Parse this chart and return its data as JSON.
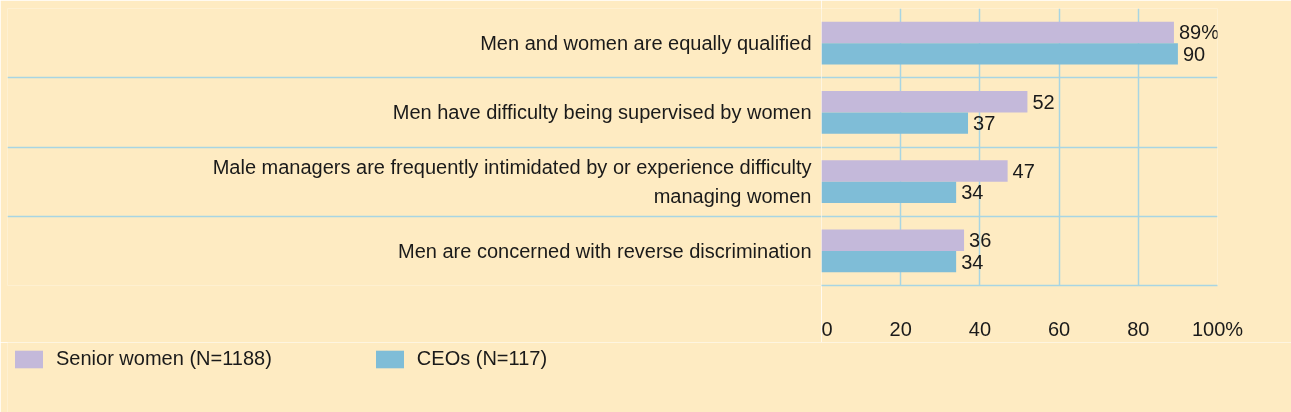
{
  "chart_data": {
    "type": "bar",
    "orientation": "horizontal",
    "categories": [
      "Men and women are equally qualified",
      "Men have difficulty being supervised by women",
      "Male managers are frequently intimidated by or experience difficulty managing women",
      "Men are concerned with reverse discrimination"
    ],
    "series": [
      {
        "name": "Senior women (N=1188)",
        "color": "#c4b9da",
        "values": [
          89,
          52,
          47,
          36
        ],
        "value_labels": [
          "89%",
          "52",
          "47",
          "36"
        ]
      },
      {
        "name": "CEOs (N=117)",
        "color": "#7fbdd7",
        "values": [
          90,
          37,
          34,
          34
        ],
        "value_labels": [
          "90",
          "37",
          "34",
          "34"
        ]
      }
    ],
    "xlim": [
      0,
      100
    ],
    "xticks": [
      0,
      20,
      40,
      60,
      80,
      {
        "value": 100,
        "label": "100%"
      }
    ],
    "grid": true,
    "legend": "bottom left"
  }
}
